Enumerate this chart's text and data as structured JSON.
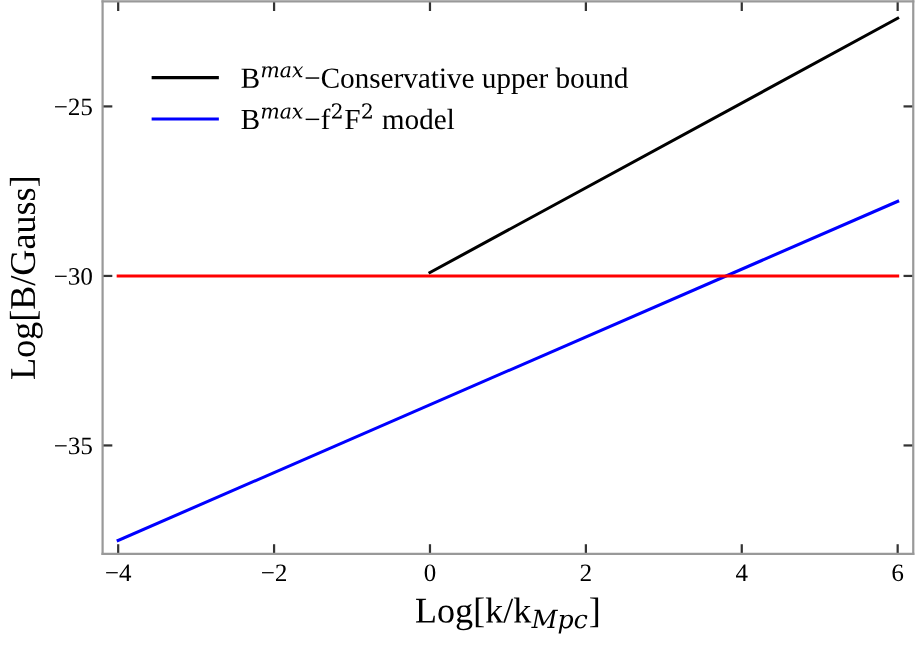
{
  "chart_data": {
    "type": "line",
    "xlabel": "Log[k/k$_{Mpc}$]",
    "ylabel": "Log[B/Gauss]",
    "xlim": [
      -4.2,
      6.2
    ],
    "ylim": [
      -38.2,
      -21.9
    ],
    "xticks": [
      -4,
      -2,
      0,
      2,
      4,
      6
    ],
    "yticks": [
      -35,
      -30,
      -25
    ],
    "series": [
      {
        "name": "B$^{max}$−Conservative upper bound",
        "color": "#000000",
        "x": [
          0,
          6
        ],
        "values": [
          -29.9,
          -22.4
        ]
      },
      {
        "name": "B$^{max}$−f$^{2}$F$^{2}$ model",
        "color": "#0000ff",
        "x": [
          -4,
          6
        ],
        "values": [
          -37.8,
          -27.8
        ]
      },
      {
        "color": "#ff0000",
        "x": [
          -4,
          6
        ],
        "values": [
          -30,
          -30
        ]
      }
    ],
    "legend": "top left",
    "grid": false,
    "marker": "none",
    "line_style": "solid"
  }
}
